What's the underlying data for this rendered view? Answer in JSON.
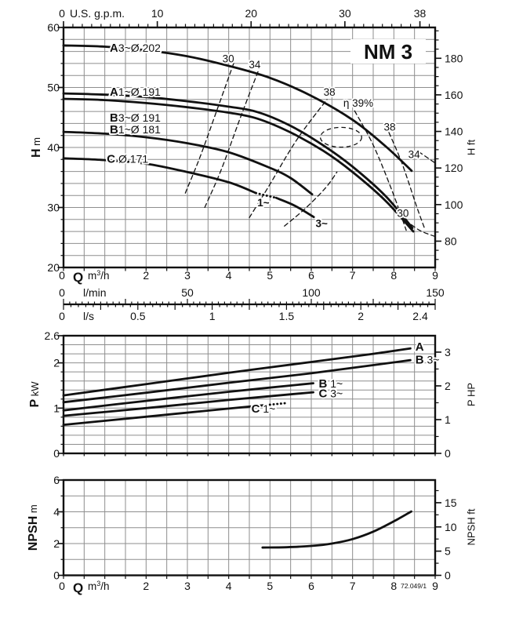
{
  "page": {
    "title": "NM 3",
    "corner_note": "72.049/1"
  },
  "colors": {
    "ink": "#111111",
    "grid": "#8e8e8e",
    "paper": "#ffffff"
  },
  "chart_data": [
    {
      "id": "head",
      "type": "line",
      "title": "NM 3",
      "xlabel": "Q m3/h",
      "ylabel": "H m",
      "y2label": "H ft",
      "xlim": [
        0,
        9
      ],
      "ylim": [
        20,
        60
      ],
      "grid": {
        "x_step": 0.5,
        "y_step": 2
      },
      "left_axis": {
        "bold": "H",
        "unit": "m",
        "ticks": [
          60,
          50,
          40,
          30,
          20
        ],
        "minor_step": 2
      },
      "right_axis": {
        "label": "H ft",
        "ticks": [
          180,
          160,
          140,
          120,
          100,
          80
        ],
        "ft_per_m": 3.28084,
        "minor_step": 5
      },
      "top_axis": {
        "zero_label": "0",
        "unit_label": "U.S. g.p.m.",
        "major_ticks": [
          0,
          10,
          20,
          30,
          38
        ],
        "gpm_per_m3h": 4.40287,
        "minor_step": 1
      },
      "bottom_axis": {
        "zero_label": "0",
        "q_bold": "Q",
        "q_unit": "m3/h",
        "major_ticks": [
          2,
          3,
          4,
          5,
          6,
          7,
          8,
          9
        ],
        "minor_step": 0.5
      },
      "flow_scales": {
        "lmin": {
          "unit": "l/min",
          "zero": "0",
          "ticks": [
            50,
            100,
            150
          ],
          "per_m3h": 16.6667,
          "minor": 2.5,
          "medium": 25
        },
        "ls": {
          "unit": "l/s",
          "zero": "0",
          "ticks": [
            0.5,
            1,
            1.5,
            2,
            2.4
          ],
          "per_m3h": 0.277778,
          "minor": 0.05,
          "medium": 0.25
        }
      },
      "series": [
        {
          "key": "A-3ph-202",
          "label_bold": "A",
          "label_rest": "3~Ø 202",
          "label_at": [
            1.12,
            56.6
          ],
          "points": [
            [
              0,
              57
            ],
            [
              1,
              56.8
            ],
            [
              2,
              56.2
            ],
            [
              3,
              55.2
            ],
            [
              4,
              53.6
            ],
            [
              5,
              51.6
            ],
            [
              6,
              48.6
            ],
            [
              7,
              44.6
            ],
            [
              7.8,
              40.2
            ],
            [
              8.43,
              36.1
            ]
          ]
        },
        {
          "key": "A-1ph-191",
          "label_bold": "A",
          "label_rest": "1~Ø 191",
          "label_at": [
            1.12,
            49.3
          ],
          "points": [
            [
              0,
              49
            ],
            [
              1,
              48.8
            ],
            [
              2,
              48.4
            ],
            [
              3,
              47.7
            ],
            [
              4,
              46.8
            ],
            [
              4.7,
              45.9
            ],
            [
              5.5,
              43.6
            ],
            [
              6.3,
              40.3
            ],
            [
              7,
              36.8
            ],
            [
              7.8,
              31.9
            ],
            [
              8.45,
              26.6
            ]
          ]
        },
        {
          "key": "B-3ph-191",
          "label_bold": "B",
          "label_rest": "3~Ø 191",
          "label_at": [
            1.12,
            45.0
          ],
          "points": [
            [
              0,
              48.1
            ],
            [
              1,
              47.9
            ],
            [
              2,
              47.4
            ],
            [
              3,
              46.7
            ],
            [
              4,
              45.8
            ],
            [
              4.7,
              44.8
            ],
            [
              5.5,
              42.5
            ],
            [
              6.3,
              39.4
            ],
            [
              7,
              35.9
            ],
            [
              7.8,
              31.1
            ],
            [
              8.47,
              26
            ]
          ]
        },
        {
          "key": "B-1ph-181",
          "label_bold": "B",
          "label_rest": "1~Ø 181",
          "label_at": [
            1.12,
            43.0
          ],
          "points": [
            [
              0,
              42.6
            ],
            [
              1,
              42.3
            ],
            [
              2,
              41.7
            ],
            [
              3,
              40.7
            ],
            [
              4,
              39.2
            ],
            [
              5,
              36.6
            ],
            [
              5.5,
              34.9
            ],
            [
              6.02,
              32.2
            ]
          ]
        },
        {
          "key": "C-171",
          "label_bold": "C",
          "label_rest": " Ø 171",
          "label_at": [
            1.05,
            38.1
          ],
          "points": [
            [
              0,
              38.2
            ],
            [
              1,
              37.9
            ],
            [
              2,
              37.3
            ],
            [
              3,
              35.9
            ],
            [
              4,
              34.2
            ],
            [
              4.66,
              32.4
            ]
          ],
          "dotted": [
            [
              4.66,
              32.4
            ],
            [
              5.15,
              31.6
            ]
          ],
          "tail": [
            [
              5.15,
              31.6
            ],
            [
              5.6,
              30.3
            ],
            [
              6.06,
              28.4
            ]
          ]
        }
      ],
      "phase_labels": [
        {
          "text": "1~",
          "at": [
            4.84,
            30.8
          ]
        },
        {
          "text": "3~",
          "at": [
            6.25,
            27.3
          ]
        }
      ],
      "efficiency": {
        "contours": [
          {
            "points": [
              [
                2.95,
                32.4
              ],
              [
                3.3,
                38.3
              ],
              [
                3.72,
                46.3
              ],
              [
                4.13,
                54.2
              ]
            ]
          },
          {
            "points": [
              [
                3.42,
                30.0
              ],
              [
                3.82,
                36.3
              ],
              [
                4.3,
                45.3
              ],
              [
                4.73,
                53.0
              ]
            ]
          },
          {
            "points": [
              [
                4.5,
                28.3
              ],
              [
                4.95,
                33.3
              ],
              [
                5.65,
                41.3
              ],
              [
                6.38,
                48.0
              ]
            ]
          },
          {
            "points": [
              [
                5.35,
                26.9
              ],
              [
                5.85,
                29.8
              ],
              [
                6.35,
                33.3
              ],
              [
                6.62,
                35.9
              ]
            ]
          },
          {
            "points": [
              [
                7.05,
                46.1
              ],
              [
                7.5,
                40.4
              ],
              [
                7.95,
                32.9
              ],
              [
                8.3,
                26.2
              ]
            ]
          },
          {
            "points": [
              [
                7.88,
                42.5
              ],
              [
                8.2,
                37.3
              ],
              [
                8.55,
                30.2
              ],
              [
                8.75,
                26.4
              ]
            ]
          },
          {
            "points": [
              [
                8.6,
                39.3
              ],
              [
                9.0,
                37.4
              ]
            ]
          },
          {
            "points": [
              [
                8.28,
                27.9
              ],
              [
                8.62,
                26.2
              ],
              [
                8.98,
                25.2
              ]
            ]
          }
        ],
        "loop": {
          "cx": 6.72,
          "cy": 41.7,
          "rx": 0.5,
          "ry": 1.65
        },
        "labels": [
          {
            "text": "30",
            "at": [
              3.99,
              54.8
            ]
          },
          {
            "text": "34",
            "at": [
              4.63,
              53.8
            ]
          },
          {
            "text": "38",
            "at": [
              6.44,
              49.2
            ]
          },
          {
            "text": "η 39%",
            "at": [
              7.14,
              47.4
            ]
          },
          {
            "text": "38",
            "at": [
              7.9,
              43.4
            ]
          },
          {
            "text": "34",
            "at": [
              8.49,
              38.8
            ]
          },
          {
            "text": "30",
            "at": [
              8.22,
              29.0
            ]
          }
        ]
      }
    },
    {
      "id": "power",
      "type": "line",
      "ylabel": "P kW",
      "y2label": "P HP",
      "xlim": [
        0,
        9
      ],
      "ylim": [
        0,
        2.6
      ],
      "grid": {
        "x_step": 0.5,
        "y_step": 0.2
      },
      "left_axis": {
        "bold": "P",
        "unit": "kW",
        "ticks": [
          2.6,
          2,
          1,
          0
        ],
        "minor_step": 0.2
      },
      "right_axis": {
        "label": "P HP",
        "ticks": [
          3,
          2,
          1,
          0
        ],
        "kw_per_hp": 0.7457,
        "minor_step": 0.5
      },
      "series": [
        {
          "key": "A",
          "label_bold": "A",
          "label_rest": "",
          "label_at": [
            8.52,
            2.36
          ],
          "points": [
            [
              0,
              1.28
            ],
            [
              2,
              1.53
            ],
            [
              4,
              1.78
            ],
            [
              6,
              2.02
            ],
            [
              7.5,
              2.2
            ],
            [
              8.4,
              2.32
            ]
          ]
        },
        {
          "key": "B-3ph",
          "label_bold": "B",
          "label_rest": " 3~",
          "label_at": [
            8.52,
            2.07
          ],
          "points": [
            [
              0,
              1.13
            ],
            [
              2,
              1.34
            ],
            [
              4,
              1.56
            ],
            [
              6,
              1.77
            ],
            [
              7.5,
              1.95
            ],
            [
              8.4,
              2.06
            ]
          ]
        },
        {
          "key": "B-1ph",
          "label_bold": "B",
          "label_rest": " 1~",
          "label_at": [
            6.18,
            1.54
          ],
          "points": [
            [
              0,
              0.95
            ],
            [
              2,
              1.16
            ],
            [
              4,
              1.36
            ],
            [
              6.05,
              1.55
            ]
          ]
        },
        {
          "key": "C-3ph",
          "label_bold": "C",
          "label_rest": " 3~",
          "label_at": [
            6.18,
            1.33
          ],
          "points": [
            [
              0,
              0.83
            ],
            [
              2,
              1.0
            ],
            [
              4,
              1.18
            ],
            [
              6.05,
              1.35
            ]
          ]
        },
        {
          "key": "C-1ph",
          "label_bold": "C",
          "label_rest": " 1~",
          "label_at": [
            4.55,
            0.99
          ],
          "points": [
            [
              0,
              0.63
            ],
            [
              2,
              0.81
            ],
            [
              4,
              0.99
            ],
            [
              4.82,
              1.06
            ]
          ],
          "dotted": [
            [
              4.82,
              1.06
            ],
            [
              5.38,
              1.11
            ]
          ]
        }
      ]
    },
    {
      "id": "npsh",
      "type": "line",
      "ylabel": "NPSH m",
      "y2label": "NPSH ft",
      "xlim": [
        0,
        9
      ],
      "ylim": [
        0,
        6
      ],
      "grid": {
        "x_step": 0.5,
        "y_step": 1
      },
      "left_axis": {
        "bold": "NPSH",
        "unit": "m",
        "ticks": [
          6,
          4,
          2,
          0
        ],
        "minor_step": 1
      },
      "right_axis": {
        "label": "NPSH ft",
        "ticks": [
          15,
          10,
          5,
          0
        ],
        "ft_per_m": 3.28084,
        "minor_step": 2.5
      },
      "bottom_axis": {
        "zero_label": "0",
        "q_bold": "Q",
        "q_unit": "m3/h",
        "major_ticks": [
          2,
          3,
          4,
          5,
          6,
          7,
          8,
          9
        ],
        "minor_step": 0.5
      },
      "corner_note": "72.049/1",
      "series": [
        {
          "key": "NPSH",
          "points": [
            [
              4.82,
              1.75
            ],
            [
              5.4,
              1.77
            ],
            [
              6,
              1.85
            ],
            [
              6.5,
              2.0
            ],
            [
              7,
              2.28
            ],
            [
              7.5,
              2.75
            ],
            [
              8,
              3.4
            ],
            [
              8.42,
              4.02
            ]
          ]
        }
      ]
    }
  ]
}
